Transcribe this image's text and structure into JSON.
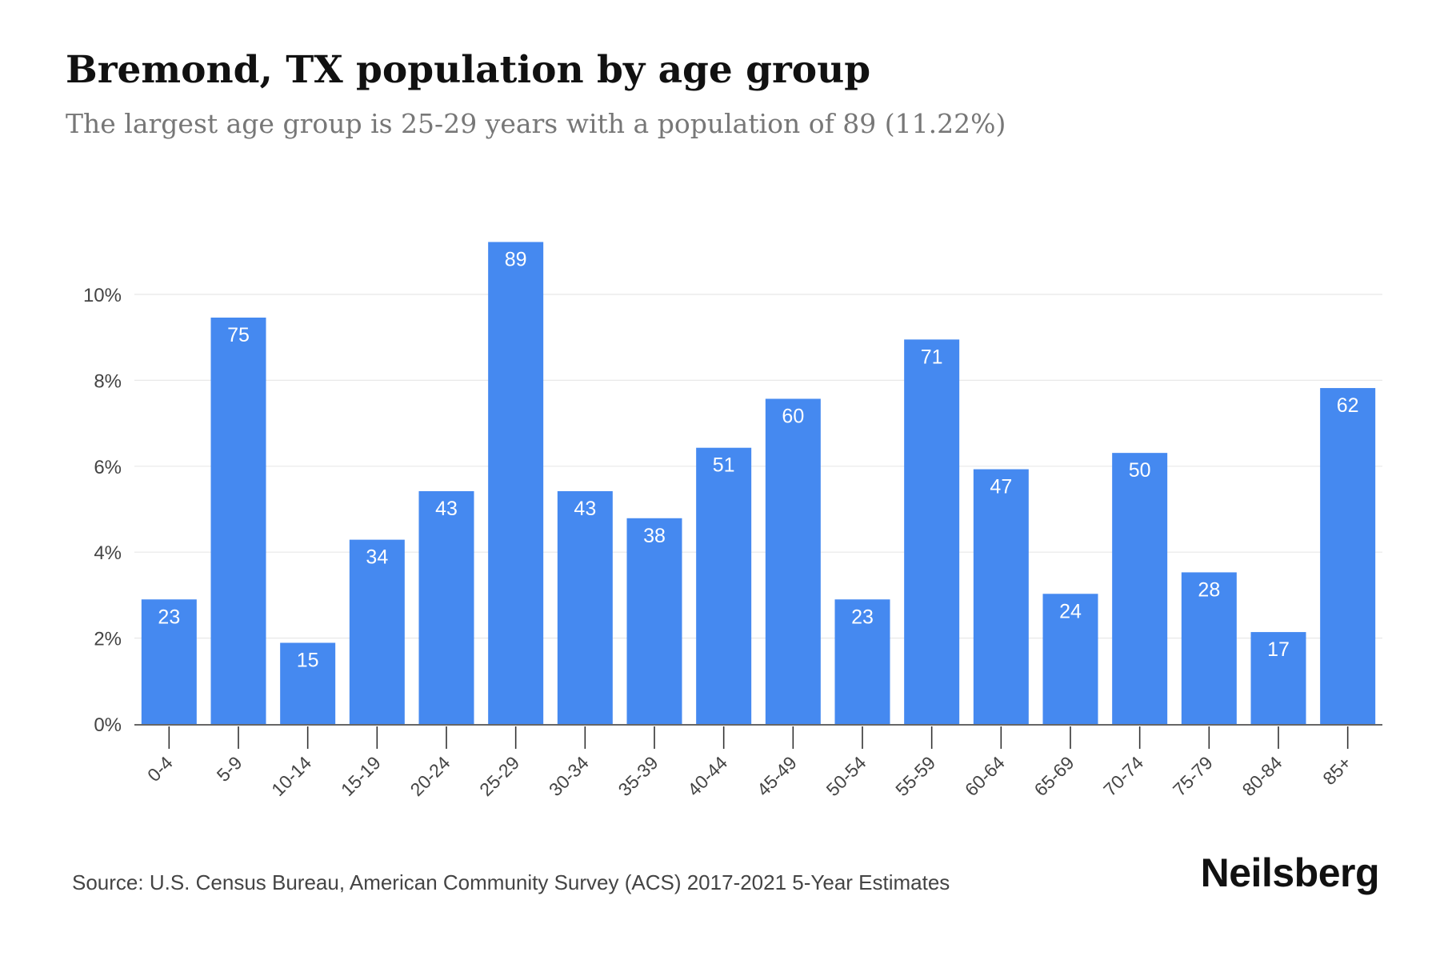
{
  "header": {
    "title": "Bremond, TX population by age group",
    "subtitle": "The largest age group is 25-29 years with a population of 89 (11.22%)"
  },
  "footer": {
    "source": "Source: U.S. Census Bureau, American Community Survey (ACS) 2017-2021 5-Year Estimates",
    "brand": "Neilsberg"
  },
  "colors": {
    "bar": "#4589F0",
    "bar_label": "#ffffff",
    "grid": "#e8e8e8",
    "axis": "#333333",
    "tick_text": "#444444"
  },
  "chart_data": {
    "type": "bar",
    "title": "Bremond, TX population by age group",
    "subtitle": "The largest age group is 25-29 years with a population of 89 (11.22%)",
    "xlabel": "",
    "ylabel": "",
    "categories": [
      "0-4",
      "5-9",
      "10-14",
      "15-19",
      "20-24",
      "25-29",
      "30-34",
      "35-39",
      "40-44",
      "45-49",
      "50-54",
      "55-59",
      "60-64",
      "65-69",
      "70-74",
      "75-79",
      "80-84",
      "85+"
    ],
    "series": [
      {
        "values": [
          2.9,
          9.46,
          1.89,
          4.29,
          5.42,
          11.22,
          5.42,
          4.79,
          6.43,
          7.57,
          2.9,
          8.95,
          5.93,
          3.03,
          6.31,
          3.53,
          2.14,
          7.82
        ],
        "labels": [
          23,
          75,
          15,
          34,
          43,
          89,
          43,
          38,
          51,
          60,
          23,
          71,
          47,
          24,
          50,
          28,
          17,
          62
        ]
      }
    ],
    "ylim": [
      0,
      12
    ],
    "yticks": [
      0,
      2,
      4,
      6,
      8,
      10
    ],
    "ytick_labels": [
      "0%",
      "2%",
      "4%",
      "6%",
      "8%",
      "10%"
    ],
    "grid": true,
    "legend": "none"
  }
}
